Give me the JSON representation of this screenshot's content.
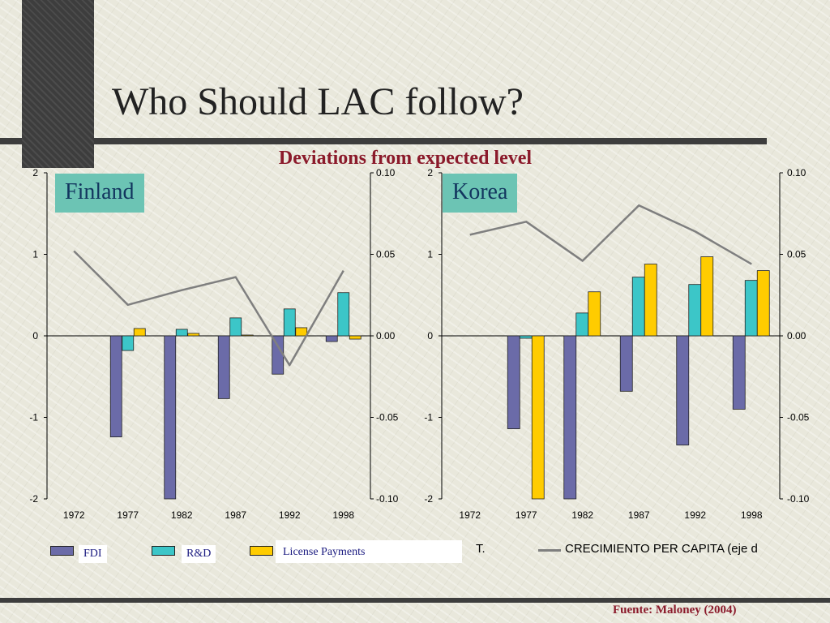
{
  "slide": {
    "title": "Who Should LAC follow?",
    "subtitle": "Deviations from expected level",
    "source": "Fuente: Maloney (2004)"
  },
  "legend": {
    "fdi": "FDI",
    "rd": "R&D",
    "license": "License Payments",
    "cut_text": "T.",
    "line": "CRECIMIENTO PER CAPITA (eje d"
  },
  "colors": {
    "fdi": "#6b6ba8",
    "rd": "#3cc6c8",
    "license": "#ffcc00",
    "line": "#7f7f7f"
  },
  "chart_data": [
    {
      "type": "bar",
      "panel_label": "Finland",
      "categories": [
        "1972",
        "1977",
        "1982",
        "1987",
        "1992",
        "1998"
      ],
      "series": [
        {
          "name": "FDI",
          "values": [
            0,
            -1.24,
            -2.0,
            -0.77,
            -0.47,
            -0.07
          ]
        },
        {
          "name": "R&D",
          "values": [
            0,
            -0.18,
            0.08,
            0.22,
            0.33,
            0.53
          ]
        },
        {
          "name": "License Payments",
          "values": [
            0,
            0.09,
            0.03,
            0.01,
            0.1,
            -0.04
          ]
        },
        {
          "name": "CRECIMIENTO PER CAPITA (eje d",
          "type": "line",
          "axis": "right",
          "values": [
            0.052,
            0.019,
            0.028,
            0.036,
            -0.018,
            0.04
          ]
        }
      ],
      "ylim": [
        -2,
        2
      ],
      "y_ticks": [
        "2",
        "1",
        "0",
        "-1",
        "-2"
      ],
      "y2lim": [
        -0.1,
        0.1
      ],
      "y2_ticks": [
        "0.10",
        "0.05",
        "0.00",
        "-0.05",
        "-0.10"
      ]
    },
    {
      "type": "bar",
      "panel_label": "Korea",
      "categories": [
        "1972",
        "1977",
        "1982",
        "1987",
        "1992",
        "1998"
      ],
      "series": [
        {
          "name": "FDI",
          "values": [
            0,
            -1.14,
            -2.0,
            -0.68,
            -1.34,
            -0.9
          ]
        },
        {
          "name": "R&D",
          "values": [
            0,
            -0.03,
            0.28,
            0.72,
            0.63,
            0.68
          ]
        },
        {
          "name": "License Payments",
          "values": [
            0,
            -2.0,
            0.54,
            0.88,
            0.97,
            0.8
          ]
        },
        {
          "name": "CRECIMIENTO PER CAPITA (eje d",
          "type": "line",
          "axis": "right",
          "values": [
            0.062,
            0.07,
            0.046,
            0.08,
            0.064,
            0.044
          ]
        }
      ],
      "ylim": [
        -2,
        2
      ],
      "y_ticks": [
        "2",
        "1",
        "0",
        "-1",
        "-2"
      ],
      "y2lim": [
        -0.1,
        0.1
      ],
      "y2_ticks": [
        "0.10",
        "0.05",
        "0.00",
        "-0.05",
        "-0.10"
      ]
    }
  ]
}
